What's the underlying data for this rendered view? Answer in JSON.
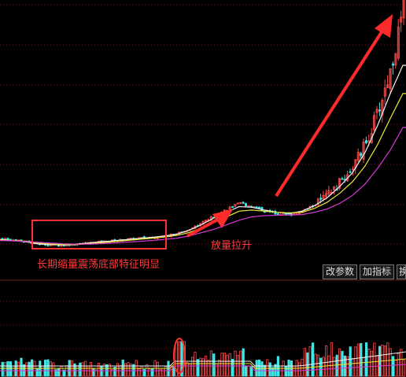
{
  "toolbar": {
    "edit_params_label": "改参数",
    "add_indicator_label": "加指标",
    "next_label": "换"
  },
  "annotations": {
    "box_label": "长期缩量震荡底部特征明显",
    "volume_label": "放量拉升"
  },
  "colors": {
    "background": "#000000",
    "up": "#ff4a4a",
    "down": "#3ee6e6",
    "ma_white": "#f2f2f2",
    "ma_yellow": "#e8e83a",
    "ma_magenta": "#d63ad6",
    "annotation": "#ff3030",
    "grid": "#5a1a1a"
  },
  "chart_data": {
    "type": "candlestick",
    "title": "",
    "price_trend": [
      10.2,
      10.1,
      9.9,
      9.7,
      9.6,
      9.6,
      9.7,
      9.8,
      9.9,
      10.0,
      10.1,
      10.2,
      10.3,
      10.4,
      10.6,
      11.0,
      11.6,
      12.2,
      12.8,
      13.3,
      13.0,
      12.6,
      12.4,
      12.3,
      12.6,
      13.2,
      14.0,
      15.2,
      16.6,
      18.6,
      21.5,
      25.2,
      30.5
    ],
    "ma_white": [
      10.1,
      10.0,
      9.9,
      9.7,
      9.65,
      9.62,
      9.68,
      9.78,
      9.88,
      9.98,
      10.08,
      10.18,
      10.28,
      10.4,
      10.55,
      10.9,
      11.4,
      12.0,
      12.5,
      13.0,
      12.95,
      12.7,
      12.5,
      12.4,
      12.6,
      13.1,
      13.8,
      14.8,
      16.0,
      17.8,
      20.2,
      23.0,
      25.5
    ],
    "ma_yellow": [
      10.05,
      10.0,
      9.95,
      9.8,
      9.7,
      9.65,
      9.65,
      9.72,
      9.8,
      9.9,
      10.0,
      10.1,
      10.2,
      10.3,
      10.45,
      10.7,
      11.1,
      11.6,
      12.1,
      12.6,
      12.7,
      12.6,
      12.5,
      12.45,
      12.5,
      12.85,
      13.4,
      14.2,
      15.2,
      16.6,
      18.5,
      20.8,
      23.0
    ],
    "ma_magenta": [
      10.0,
      9.98,
      9.92,
      9.85,
      9.78,
      9.72,
      9.68,
      9.68,
      9.72,
      9.78,
      9.85,
      9.92,
      10.0,
      10.1,
      10.2,
      10.4,
      10.7,
      11.0,
      11.4,
      11.8,
      12.1,
      12.2,
      12.25,
      12.25,
      12.3,
      12.5,
      12.8,
      13.3,
      14.0,
      15.0,
      16.4,
      18.0,
      20.0
    ],
    "volume_note": "low volume during base, volume surge on breakout"
  }
}
